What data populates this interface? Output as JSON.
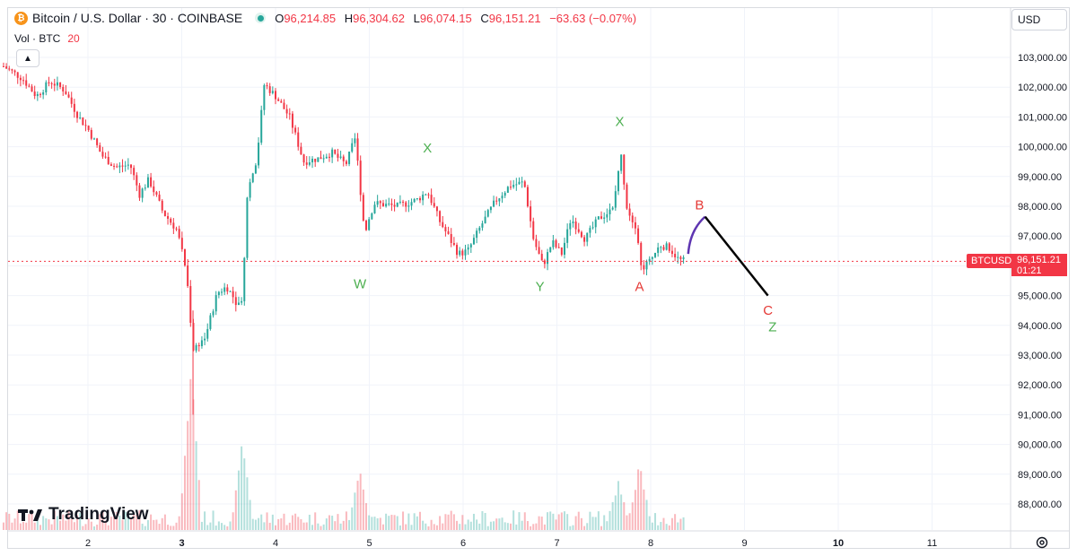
{
  "legend": {
    "symbol_icon": "bitcoin-icon",
    "title": "Bitcoin / U.S. Dollar · 30 · COINBASE",
    "ohlc": [
      {
        "key": "O",
        "value": "96,214.85"
      },
      {
        "key": "H",
        "value": "96,304.62"
      },
      {
        "key": "L",
        "value": "96,074.15"
      },
      {
        "key": "C",
        "value": "96,151.21"
      }
    ],
    "change": "−63.63 (−0.07%)",
    "volume_label": "Vol · BTC",
    "volume_value": "20"
  },
  "currency": "USD",
  "last_price": {
    "symbol": "BTCUSD",
    "price": "96,151.21",
    "countdown": "01:21"
  },
  "watermark": "TradingView",
  "colors": {
    "up": "#26a69a",
    "down": "#f23645",
    "wave_green": "#4caf50",
    "wave_red": "#e53935",
    "wave_purple": "#5e35b1",
    "projection": "#000000"
  },
  "chart_data": {
    "type": "candlestick",
    "y_axis": {
      "min": 87500,
      "max": 103500,
      "ticks": [
        "103,000.00",
        "102,000.00",
        "101,000.00",
        "100,000.00",
        "99,000.00",
        "98,000.00",
        "97,000.00",
        "96,000.00",
        "95,000.00",
        "94,000.00",
        "93,000.00",
        "92,000.00",
        "91,000.00",
        "90,000.00",
        "89,000.00",
        "88,000.00"
      ]
    },
    "x_axis": {
      "ticks": [
        {
          "label": "2",
          "day": 2,
          "bold": false
        },
        {
          "label": "3",
          "day": 3,
          "bold": true
        },
        {
          "label": "4",
          "day": 4,
          "bold": false
        },
        {
          "label": "5",
          "day": 5,
          "bold": false
        },
        {
          "label": "6",
          "day": 6,
          "bold": false
        },
        {
          "label": "7",
          "day": 7,
          "bold": false
        },
        {
          "label": "8",
          "day": 8,
          "bold": false
        },
        {
          "label": "9",
          "day": 9,
          "bold": false
        },
        {
          "label": "10",
          "day": 10,
          "bold": true
        },
        {
          "label": "11",
          "day": 11,
          "bold": false
        }
      ]
    },
    "price_path": [
      [
        1.1,
        102700
      ],
      [
        1.3,
        102300
      ],
      [
        1.45,
        101700
      ],
      [
        1.6,
        102200
      ],
      [
        1.75,
        101900
      ],
      [
        1.9,
        101000
      ],
      [
        2.0,
        100600
      ],
      [
        2.15,
        99700
      ],
      [
        2.3,
        99300
      ],
      [
        2.45,
        99400
      ],
      [
        2.55,
        98400
      ],
      [
        2.65,
        98900
      ],
      [
        2.8,
        97800
      ],
      [
        2.95,
        97200
      ],
      [
        3.05,
        95800
      ],
      [
        3.12,
        93200
      ],
      [
        3.25,
        93600
      ],
      [
        3.38,
        95100
      ],
      [
        3.48,
        95300
      ],
      [
        3.6,
        94700
      ],
      [
        3.65,
        95000
      ],
      [
        3.7,
        98500
      ],
      [
        3.8,
        99600
      ],
      [
        3.88,
        102100
      ],
      [
        4.0,
        101700
      ],
      [
        4.15,
        101000
      ],
      [
        4.3,
        99500
      ],
      [
        4.45,
        99600
      ],
      [
        4.6,
        99800
      ],
      [
        4.75,
        99400
      ],
      [
        4.85,
        100300
      ],
      [
        4.95,
        97100
      ],
      [
        5.05,
        98100
      ],
      [
        5.3,
        98000
      ],
      [
        5.5,
        98200
      ],
      [
        5.62,
        98500
      ],
      [
        5.75,
        97500
      ],
      [
        5.95,
        96400
      ],
      [
        6.05,
        96500
      ],
      [
        6.2,
        97400
      ],
      [
        6.35,
        98200
      ],
      [
        6.5,
        98700
      ],
      [
        6.65,
        98800
      ],
      [
        6.75,
        96900
      ],
      [
        6.85,
        96000
      ],
      [
        6.95,
        96800
      ],
      [
        7.05,
        96400
      ],
      [
        7.15,
        97600
      ],
      [
        7.3,
        96900
      ],
      [
        7.45,
        97600
      ],
      [
        7.6,
        97900
      ],
      [
        7.68,
        99800
      ],
      [
        7.75,
        97900
      ],
      [
        7.85,
        97300
      ],
      [
        7.9,
        95900
      ],
      [
        8.0,
        96200
      ],
      [
        8.1,
        96700
      ],
      [
        8.2,
        96600
      ],
      [
        8.3,
        96200
      ],
      [
        8.38,
        96150
      ]
    ],
    "volume_spikes": [
      {
        "day": 3.1,
        "height": 1.0
      },
      {
        "day": 3.65,
        "height": 0.55
      },
      {
        "day": 4.9,
        "height": 0.36
      },
      {
        "day": 7.65,
        "height": 0.28
      },
      {
        "day": 7.88,
        "height": 0.4
      }
    ],
    "last_price_value": 96151.21,
    "annotations": [
      {
        "label": "W",
        "color": "green",
        "day": 4.9,
        "price": 95250
      },
      {
        "label": "X",
        "color": "green",
        "day": 5.62,
        "price": 99800
      },
      {
        "label": "Y",
        "color": "green",
        "day": 6.82,
        "price": 95150
      },
      {
        "label": "X",
        "color": "green",
        "day": 7.67,
        "price": 100700
      },
      {
        "label": "A",
        "color": "red",
        "day": 7.88,
        "price": 95150
      },
      {
        "label": "B",
        "color": "red",
        "day": 8.52,
        "price": 97900
      },
      {
        "label": "C",
        "color": "red",
        "day": 9.25,
        "price": 94350
      },
      {
        "label": "Z",
        "color": "green",
        "day": 9.3,
        "price": 93800
      }
    ],
    "projection_curve": [
      [
        8.4,
        96400
      ],
      [
        8.42,
        97200
      ],
      [
        8.58,
        97650
      ]
    ],
    "projection_line": [
      [
        8.58,
        97650
      ],
      [
        9.25,
        95000
      ]
    ]
  }
}
